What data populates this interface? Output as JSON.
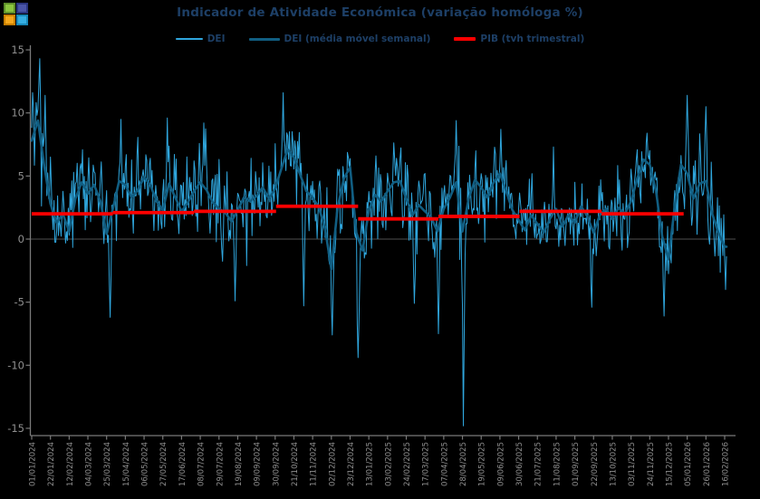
{
  "window": {
    "app_icon": {
      "colors": [
        "#8bc53f",
        "#4a55a8",
        "#f5a81c",
        "#35aee2"
      ],
      "borders": [
        "#5e8f2a",
        "#2a3580",
        "#c77f00",
        "#1787b8"
      ]
    }
  },
  "chart_data": {
    "type": "line",
    "title": "Indicador de Atividade Económica (variação homóloga %)",
    "legend": [
      {
        "label": "DEI",
        "color": "#2fa6dd",
        "line_width": 2
      },
      {
        "label": "DEI (média móvel semanal)",
        "color": "#115e82",
        "line_width": 3
      },
      {
        "label": "PIB (tvh trimestral)",
        "color": "#ff0000",
        "line_width": 4
      }
    ],
    "background": "#000000",
    "colors": {
      "dei_daily": "#2fa6dd",
      "dei_ma": "#115e82",
      "pib": "#ff0000",
      "axis": "#7a7a7a",
      "tick_text": "#8f8f8f",
      "zero_line": "#4f4f4f",
      "title_text": "#1d3f66"
    },
    "ylim": [
      -15,
      15
    ],
    "y_ticks": [
      15,
      10,
      5,
      0,
      -5,
      -10,
      -15
    ],
    "grid": "zero-line-only",
    "legend_position": "top-center",
    "x_start": "2024-01-01",
    "x_end": "2026-02-18",
    "x_tick_interval_days": 21,
    "x_tick_labels": [
      "01/01/2024",
      "22/01/2024",
      "12/02/2024",
      "04/03/2024",
      "25/03/2024",
      "15/04/2024",
      "06/05/2024",
      "27/05/2024",
      "17/06/2024",
      "08/07/2024",
      "29/07/2024",
      "19/08/2024",
      "09/09/2024",
      "30/09/2024",
      "21/10/2024",
      "11/11/2024",
      "02/12/2024",
      "23/12/2024",
      "13/01/2025",
      "03/02/2025",
      "24/02/2025",
      "17/03/2025",
      "07/04/2025",
      "28/04/2025",
      "19/05/2025",
      "09/06/2025",
      "30/06/2025",
      "21/07/2025",
      "11/08/2025",
      "01/09/2025",
      "22/09/2025",
      "13/10/2025",
      "03/11/2025",
      "24/11/2025",
      "15/12/2025",
      "05/01/2026",
      "26/01/2026",
      "16/02/2026"
    ],
    "series": {
      "dei_weekly_ma": {
        "name": "DEI (média móvel semanal)",
        "start": "2024-01-01",
        "step_days": 7,
        "values": [
          7.8,
          9.4,
          5.8,
          2.8,
          1.3,
          2.0,
          0.6,
          3.2,
          4.5,
          3.6,
          4.3,
          3.0,
          0.4,
          2.4,
          4.6,
          4.3,
          3.3,
          3.9,
          4.9,
          4.3,
          3.0,
          2.3,
          4.4,
          3.3,
          2.2,
          2.9,
          3.8,
          4.5,
          3.9,
          2.9,
          2.4,
          2.1,
          1.4,
          2.3,
          3.3,
          3.0,
          3.4,
          4.1,
          3.2,
          4.0,
          5.6,
          7.1,
          6.5,
          5.1,
          3.8,
          3.3,
          2.5,
          0.8,
          -2.4,
          2.5,
          4.8,
          5.7,
          0.5,
          -0.9,
          2.3,
          3.5,
          3.0,
          3.8,
          4.5,
          4.6,
          3.2,
          1.9,
          2.7,
          2.2,
          1.7,
          0.6,
          2.4,
          3.3,
          4.5,
          0.6,
          3.2,
          4.7,
          4.1,
          3.3,
          4.5,
          5.2,
          3.8,
          2.3,
          1.5,
          0.7,
          1.9,
          1.2,
          0.5,
          1.6,
          2.4,
          1.0,
          1.9,
          1.3,
          2.6,
          1.8,
          0.5,
          1.9,
          2.4,
          1.6,
          2.5,
          2.0,
          3.0,
          4.8,
          6.3,
          5.9,
          3.8,
          0.2,
          -1.6,
          2.6,
          5.9,
          5.2,
          3.2,
          4.4,
          4.6,
          2.0,
          0.5,
          -0.6
        ]
      },
      "dei_daily_extremes": [
        {
          "date": "2024-01-10",
          "value": 14.3
        },
        {
          "date": "2024-01-16",
          "value": 11.4
        },
        {
          "date": "2024-03-29",
          "value": -6.2
        },
        {
          "date": "2024-04-10",
          "value": 9.5
        },
        {
          "date": "2024-06-01",
          "value": 9.6
        },
        {
          "date": "2024-07-12",
          "value": 9.2
        },
        {
          "date": "2024-08-16",
          "value": -4.9
        },
        {
          "date": "2024-10-09",
          "value": 11.6
        },
        {
          "date": "2024-11-01",
          "value": -5.3
        },
        {
          "date": "2024-12-03",
          "value": -7.6
        },
        {
          "date": "2025-01-01",
          "value": -9.4
        },
        {
          "date": "2025-03-05",
          "value": -5.1
        },
        {
          "date": "2025-04-01",
          "value": -7.5
        },
        {
          "date": "2025-04-21",
          "value": 9.4
        },
        {
          "date": "2025-04-29",
          "value": -14.8
        },
        {
          "date": "2025-06-10",
          "value": 8.7
        },
        {
          "date": "2025-08-08",
          "value": 7.3
        },
        {
          "date": "2025-09-20",
          "value": -5.4
        },
        {
          "date": "2025-11-21",
          "value": 8.4
        },
        {
          "date": "2025-12-10",
          "value": -6.1
        },
        {
          "date": "2026-01-05",
          "value": 11.4
        },
        {
          "date": "2026-01-26",
          "value": 10.5
        },
        {
          "date": "2026-02-17",
          "value": -4.0
        }
      ],
      "dei_daily_noise": {
        "seed": 20240101,
        "amplitude": 2.3,
        "weekly_cycle": 1.0
      },
      "pib_quarterly": [
        {
          "quarter": "2024 T1",
          "from": "2024-01-01",
          "to": "2024-04-01",
          "value": 2.0
        },
        {
          "quarter": "2024 T2",
          "from": "2024-04-01",
          "to": "2024-07-01",
          "value": 2.1
        },
        {
          "quarter": "2024 T3",
          "from": "2024-07-01",
          "to": "2024-10-01",
          "value": 2.2
        },
        {
          "quarter": "2024 T4",
          "from": "2024-10-01",
          "to": "2025-01-01",
          "value": 2.6
        },
        {
          "quarter": "2025 T1",
          "from": "2025-01-01",
          "to": "2025-04-01",
          "value": 1.6
        },
        {
          "quarter": "2025 T2",
          "from": "2025-04-01",
          "to": "2025-07-01",
          "value": 1.8
        },
        {
          "quarter": "2025 T3",
          "from": "2025-07-01",
          "to": "2025-10-01",
          "value": 2.2
        },
        {
          "quarter": "2025 T4",
          "from": "2025-10-01",
          "to": "2026-01-01",
          "value": 2.0
        }
      ]
    }
  }
}
